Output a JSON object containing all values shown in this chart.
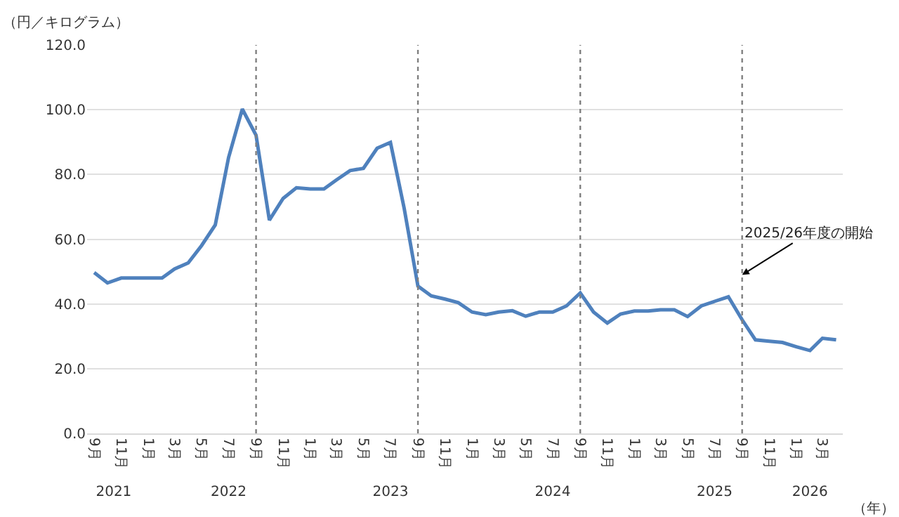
{
  "chart_data": {
    "type": "line",
    "ylabel": "（円／キログラム）",
    "x2label": "（年）",
    "x": [
      "2021-09",
      "2021-10",
      "2021-11",
      "2021-12",
      "2022-01",
      "2022-02",
      "2022-03",
      "2022-04",
      "2022-05",
      "2022-06",
      "2022-07",
      "2022-08",
      "2022-09",
      "2022-10",
      "2022-11",
      "2022-12",
      "2023-01",
      "2023-02",
      "2023-03",
      "2023-04",
      "2023-05",
      "2023-06",
      "2023-07",
      "2023-08",
      "2023-09",
      "2023-10",
      "2023-11",
      "2023-12",
      "2024-01",
      "2024-02",
      "2024-03",
      "2024-04",
      "2024-05",
      "2024-06",
      "2024-07",
      "2024-08",
      "2024-09",
      "2024-10",
      "2024-11",
      "2024-12",
      "2025-01",
      "2025-02",
      "2025-03",
      "2025-04",
      "2025-05",
      "2025-06",
      "2025-07",
      "2025-08",
      "2025-09",
      "2025-10",
      "2025-11",
      "2025-12",
      "2026-01",
      "2026-02",
      "2026-03",
      "2026-04"
    ],
    "series": [
      {
        "color": "#4f81bd",
        "values": [
          49.7,
          46.5,
          48,
          48,
          48,
          48,
          50.8,
          52.7,
          58,
          64.4,
          85.2,
          100.2,
          92.1,
          65.9,
          72.6,
          75.9,
          75.5,
          75.5,
          78.3,
          81.2,
          81.9,
          88.1,
          89.9,
          69.5,
          45.5,
          42.5,
          41.5,
          40.4,
          37.5,
          36.7,
          37.5,
          37.9,
          36.2,
          37.5,
          37.5,
          39.4,
          43.4,
          37.5,
          34.1,
          36.9,
          37.8,
          37.8,
          38.2,
          38.2,
          36.1,
          39.4,
          40.8,
          42.2,
          35.1,
          28.9,
          28.5,
          28.1,
          26.8,
          25.6,
          29.4,
          28.9
        ]
      }
    ],
    "ylim": [
      0,
      120
    ],
    "yticks": [
      {
        "value": 0,
        "label": "0.0"
      },
      {
        "value": 20,
        "label": "20.0"
      },
      {
        "value": 40,
        "label": "40.0"
      },
      {
        "value": 60,
        "label": "60.0"
      },
      {
        "value": 80,
        "label": "80.0"
      },
      {
        "value": 100,
        "label": "100.0"
      },
      {
        "value": 120,
        "label": "120.0"
      }
    ],
    "xlim": [
      "2021-08-16",
      "2026-04-16"
    ],
    "xticks": [
      {
        "value": "2021-09",
        "label": "9月"
      },
      {
        "value": "2021-11",
        "label": "11月"
      },
      {
        "value": "2022-01",
        "label": "1月"
      },
      {
        "value": "2022-03",
        "label": "3月"
      },
      {
        "value": "2022-05",
        "label": "5月"
      },
      {
        "value": "2022-07",
        "label": "7月"
      },
      {
        "value": "2022-09",
        "label": "9月"
      },
      {
        "value": "2022-11",
        "label": "11月"
      },
      {
        "value": "2023-01",
        "label": "1月"
      },
      {
        "value": "2023-03",
        "label": "3月"
      },
      {
        "value": "2023-05",
        "label": "5月"
      },
      {
        "value": "2023-07",
        "label": "7月"
      },
      {
        "value": "2023-09",
        "label": "9月"
      },
      {
        "value": "2023-11",
        "label": "11月"
      },
      {
        "value": "2024-01",
        "label": "1月"
      },
      {
        "value": "2024-03",
        "label": "3月"
      },
      {
        "value": "2024-05",
        "label": "5月"
      },
      {
        "value": "2024-07",
        "label": "7月"
      },
      {
        "value": "2024-09",
        "label": "9月"
      },
      {
        "value": "2024-11",
        "label": "11月"
      },
      {
        "value": "2025-01",
        "label": "1月"
      },
      {
        "value": "2025-03",
        "label": "3月"
      },
      {
        "value": "2025-05",
        "label": "5月"
      },
      {
        "value": "2025-07",
        "label": "7月"
      },
      {
        "value": "2025-09",
        "label": "9月"
      },
      {
        "value": "2025-11",
        "label": "11月"
      },
      {
        "value": "2026-01",
        "label": "1月"
      },
      {
        "value": "2026-03",
        "label": "3月"
      }
    ],
    "x2lim": [
      "2021-08-16",
      "2026-04-16"
    ],
    "x2ticks": [
      {
        "value": "2021-10-15",
        "label": "2021"
      },
      {
        "value": "2022-07",
        "label": "2022"
      },
      {
        "value": "2023-07",
        "label": "2023"
      },
      {
        "value": "2024-07",
        "label": "2024"
      },
      {
        "value": "2025-07",
        "label": "2025"
      },
      {
        "value": "2026-02",
        "label": "2026"
      }
    ],
    "ref_lines": [
      {
        "axis": "x",
        "value": "2022-09",
        "color": "#808080",
        "line_style": "dotted"
      },
      {
        "axis": "x",
        "value": "2023-09",
        "color": "#808080",
        "line_style": "dotted"
      },
      {
        "axis": "x",
        "value": "2024-09",
        "color": "#808080",
        "line_style": "dotted"
      },
      {
        "axis": "x",
        "value": "2025-09",
        "color": "#808080",
        "line_style": "dotted"
      }
    ],
    "annotations": [
      {
        "text": "2025/26年度の開始",
        "x": "2025-09",
        "y": 49
      }
    ],
    "grid": "y",
    "marker": "none",
    "line_style": "solid"
  }
}
